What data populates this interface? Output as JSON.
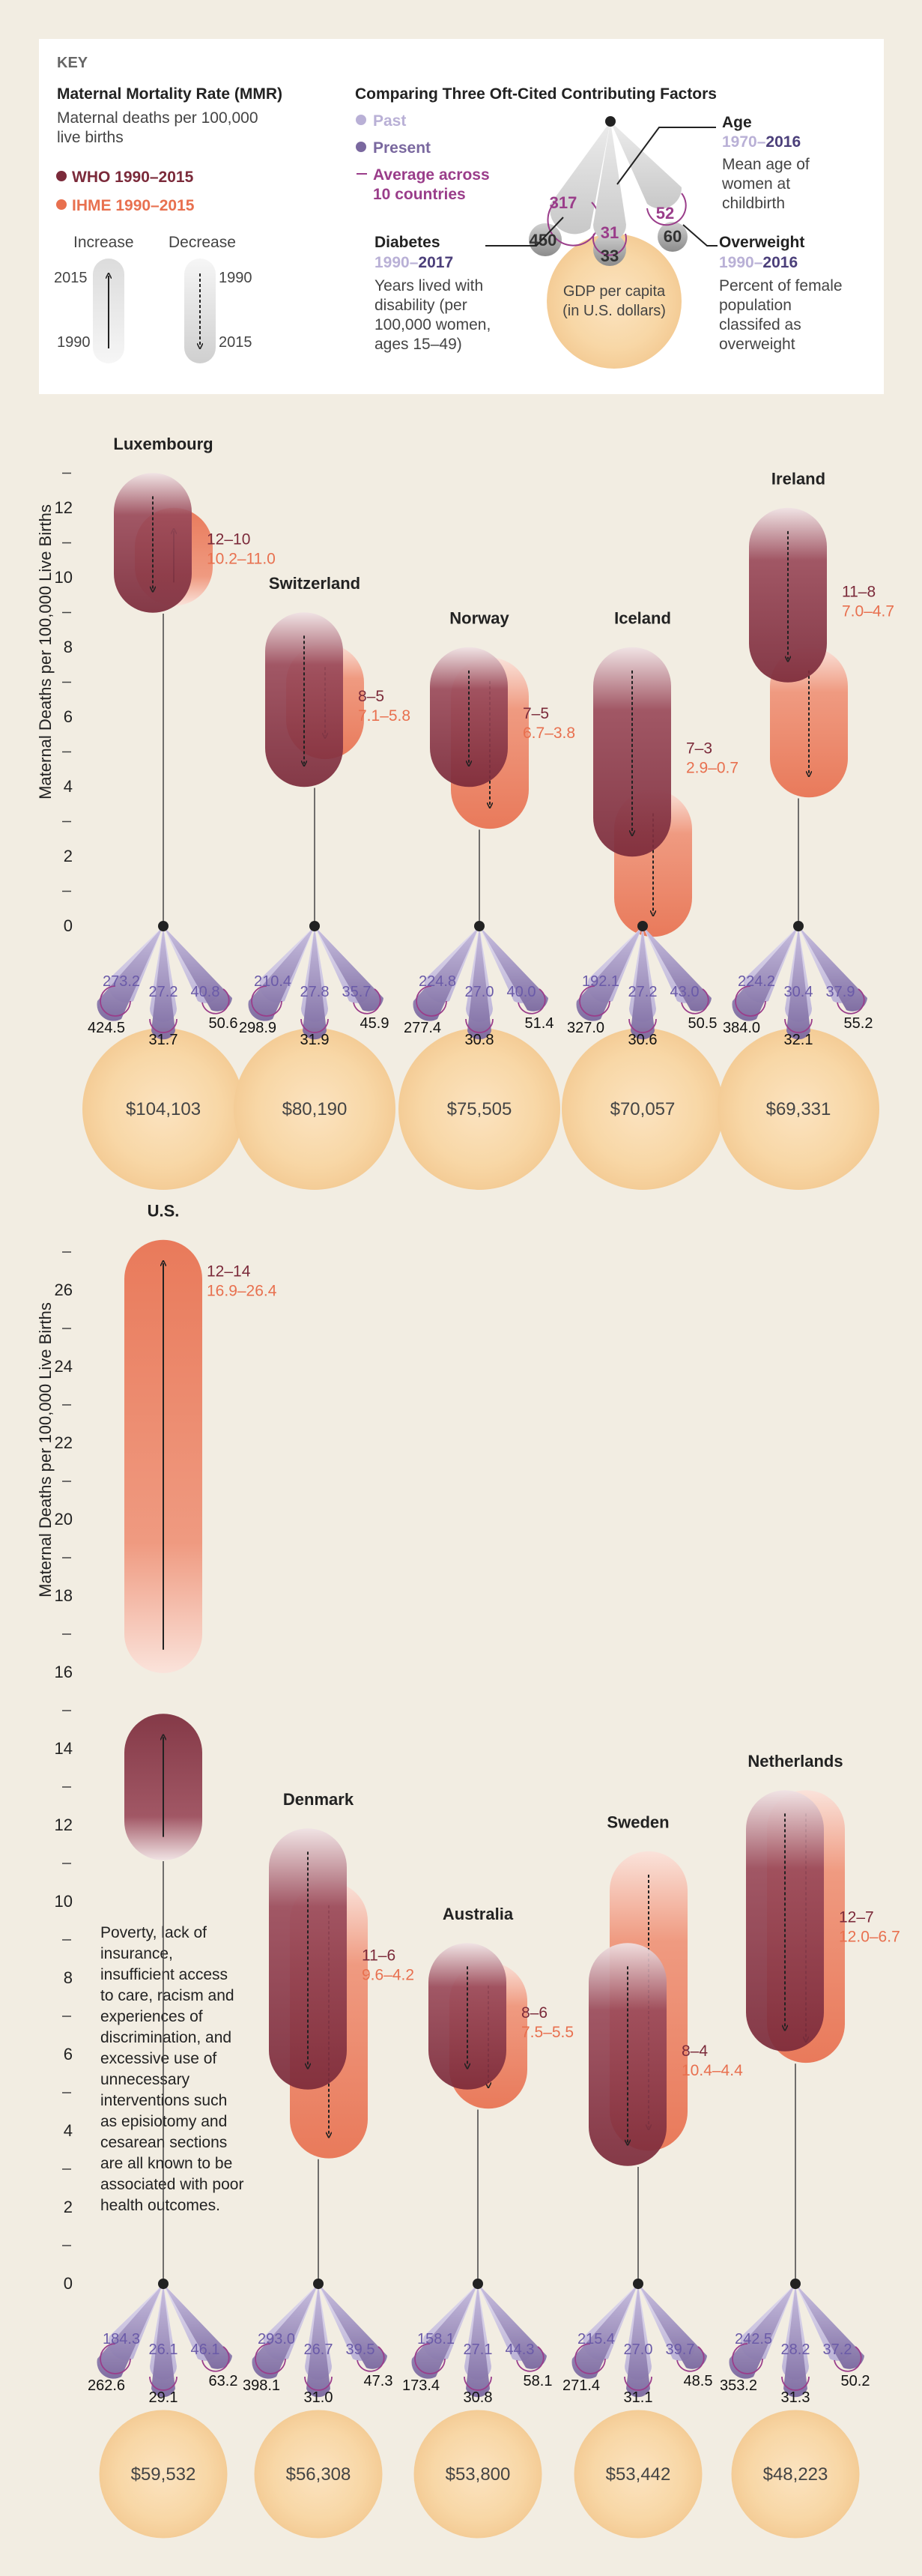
{
  "key": {
    "heading": "KEY",
    "mmr_title": "Maternal Mortality Rate (MMR)",
    "mmr_desc": [
      "Maternal deaths per 100,000",
      "live births"
    ],
    "who_label": "WHO 1990–2015",
    "ihme_label": "IHME 1990–2015",
    "increase_label": "Increase",
    "decrease_label": "Decrease",
    "inc_top_year": "2015",
    "inc_bottom_year": "1990",
    "dec_top_year": "1990",
    "dec_bottom_year": "2015",
    "factors_title": "Comparing Three Oft-Cited Contributing Factors",
    "legend_past": "Past",
    "legend_present": "Present",
    "legend_avg": [
      "Average across",
      "10 countries"
    ],
    "diabetes_title": "Diabetes",
    "diabetes_years_a": "1990–",
    "diabetes_years_b": "2017",
    "diabetes_desc": [
      "Years lived with",
      "disability (per",
      "100,000 women,",
      "ages 15–49)"
    ],
    "age_title": "Age",
    "age_years_a": "1970–",
    "age_years_b": "2016",
    "age_desc": [
      "Mean age of",
      "women at",
      "childbirth"
    ],
    "overweight_title": "Overweight",
    "overweight_years_a": "1990–",
    "overweight_years_b": "2016",
    "overweight_desc": [
      "Percent of female",
      "population",
      "classifed as",
      "overweight"
    ],
    "gdp_desc": [
      "GDP per capita",
      "(in U.S. dollars)"
    ],
    "sample_diab_avg": "317",
    "sample_diab_pres": "450",
    "sample_age_avg": "31",
    "sample_age_pres": "33",
    "sample_ow_avg": "52",
    "sample_ow_pres": "60"
  },
  "ylabel": "Maternal Deaths per 100,000 Live Births",
  "note": [
    "Poverty, lack of",
    "insurance,",
    "insufficient access",
    "to care, racism and",
    "experiences of",
    "discrimination, and",
    "excessive use of",
    "unnecessary",
    "interventions such",
    "as episiotomy and",
    "cesarean sections",
    "are all known to be",
    "associated with poor",
    "health outcomes."
  ],
  "colors": {
    "who": "#7b2a3a",
    "ihme": "#e8704f",
    "past": "#b9b0d6",
    "present": "#7a689f",
    "average": "#9a3d8a",
    "gdp": "#f8d7a6",
    "background": "#f2ede2"
  },
  "chart_data": {
    "type": "range-bar",
    "ylabel": "Maternal Deaths per 100,000 Live Births",
    "panels": [
      {
        "ylim": [
          0,
          13
        ],
        "yticks": [
          0,
          2,
          4,
          6,
          8,
          10,
          12
        ]
      },
      {
        "ylim": [
          0,
          27
        ],
        "yticks": [
          0,
          2,
          4,
          6,
          8,
          10,
          12,
          14,
          16,
          18,
          20,
          22,
          24,
          26
        ]
      }
    ],
    "countries": [
      {
        "name": "Luxembourg",
        "who": [
          12,
          10
        ],
        "ihme": [
          10.2,
          11.0
        ],
        "who_label": "12–10",
        "ihme_label": "10.2–11.0",
        "diabetes": [
          "273.2",
          "424.5"
        ],
        "age": [
          "27.2",
          "31.7"
        ],
        "overweight": [
          "40.8",
          "50.6"
        ],
        "gdp": "$104,103"
      },
      {
        "name": "Switzerland",
        "who": [
          8,
          5
        ],
        "ihme": [
          7.1,
          5.8
        ],
        "who_label": "8–5",
        "ihme_label": "7.1–5.8",
        "diabetes": [
          "210.4",
          "298.9"
        ],
        "age": [
          "27.8",
          "31.9"
        ],
        "overweight": [
          "35.7",
          "45.9"
        ],
        "gdp": "$80,190"
      },
      {
        "name": "Norway",
        "who": [
          7,
          5
        ],
        "ihme": [
          6.7,
          3.8
        ],
        "who_label": "7–5",
        "ihme_label": "6.7–3.8",
        "diabetes": [
          "224.8",
          "277.4"
        ],
        "age": [
          "27.0",
          "30.8"
        ],
        "overweight": [
          "40.0",
          "51.4"
        ],
        "gdp": "$75,505"
      },
      {
        "name": "Iceland",
        "who": [
          7,
          3
        ],
        "ihme": [
          2.9,
          0.7
        ],
        "who_label": "7–3",
        "ihme_label": "2.9–0.7",
        "diabetes": [
          "192.1",
          "327.0"
        ],
        "age": [
          "27.2",
          "30.6"
        ],
        "overweight": [
          "43.0",
          "50.5"
        ],
        "gdp": "$70,057"
      },
      {
        "name": "Ireland",
        "who": [
          11,
          8
        ],
        "ihme": [
          7.0,
          4.7
        ],
        "who_label": "11–8",
        "ihme_label": "7.0–4.7",
        "diabetes": [
          "224.2",
          "384.0"
        ],
        "age": [
          "30.4",
          "32.1"
        ],
        "overweight": [
          "37.9",
          "55.2"
        ],
        "gdp": "$69,331"
      },
      {
        "name": "U.S.",
        "who": [
          12,
          14
        ],
        "ihme": [
          16.9,
          26.4
        ],
        "who_label": "12–14",
        "ihme_label": "16.9–26.4",
        "diabetes": [
          "184.3",
          "262.6"
        ],
        "age": [
          "26.1",
          "29.1"
        ],
        "overweight": [
          "46.1",
          "63.2"
        ],
        "gdp": "$59,532"
      },
      {
        "name": "Denmark",
        "who": [
          11,
          6
        ],
        "ihme": [
          9.6,
          4.2
        ],
        "who_label": "11–6",
        "ihme_label": "9.6–4.2",
        "diabetes": [
          "293.0",
          "398.1"
        ],
        "age": [
          "26.7",
          "31.0"
        ],
        "overweight": [
          "39.5",
          "47.3"
        ],
        "gdp": "$56,308"
      },
      {
        "name": "Australia",
        "who": [
          8,
          6
        ],
        "ihme": [
          7.5,
          5.5
        ],
        "who_label": "8–6",
        "ihme_label": "7.5–5.5",
        "diabetes": [
          "158.1",
          "173.4"
        ],
        "age": [
          "27.1",
          "30.8"
        ],
        "overweight": [
          "44.3",
          "58.1"
        ],
        "gdp": "$53,800"
      },
      {
        "name": "Sweden",
        "who": [
          8,
          4
        ],
        "ihme": [
          10.4,
          4.4
        ],
        "who_label": "8–4",
        "ihme_label": "10.4–4.4",
        "diabetes": [
          "215.4",
          "271.4"
        ],
        "age": [
          "27.0",
          "31.1"
        ],
        "overweight": [
          "39.7",
          "48.5"
        ],
        "gdp": "$53,442"
      },
      {
        "name": "Netherlands",
        "who": [
          12,
          7
        ],
        "ihme": [
          12.0,
          6.7
        ],
        "who_label": "12–7",
        "ihme_label": "12.0–6.7",
        "diabetes": [
          "242.5",
          "353.2"
        ],
        "age": [
          "28.2",
          "31.3"
        ],
        "overweight": [
          "37.2",
          "50.2"
        ],
        "gdp": "$48,223"
      }
    ]
  }
}
